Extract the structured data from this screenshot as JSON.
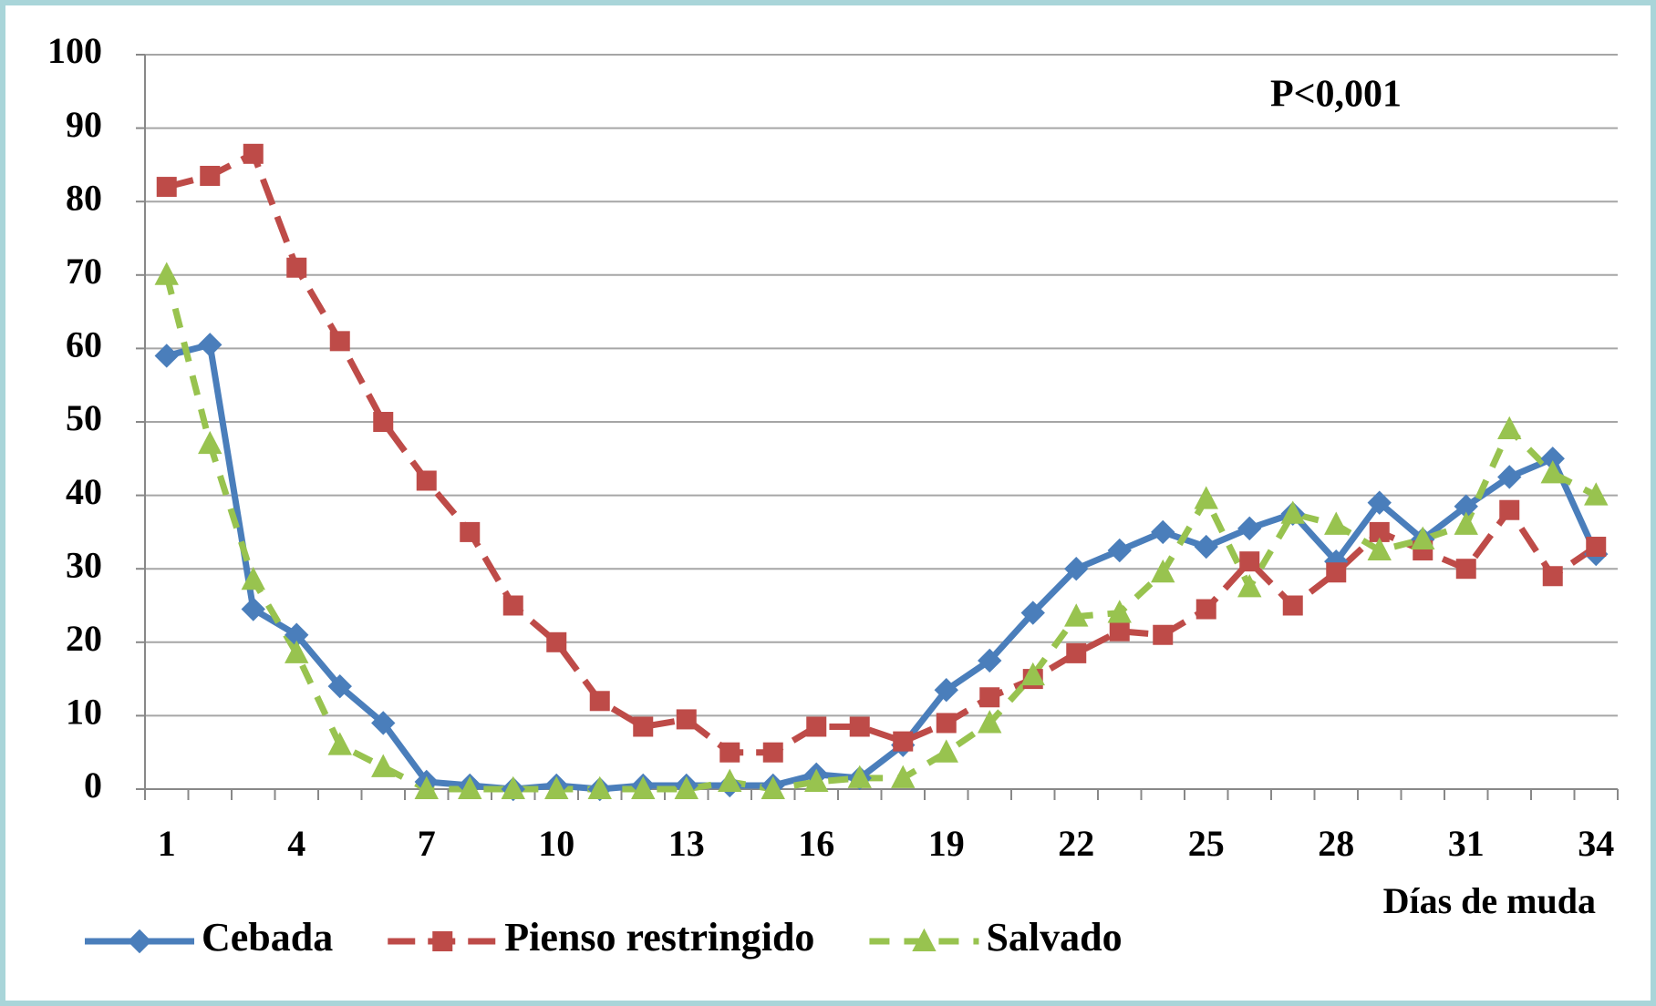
{
  "chart_data": {
    "type": "line",
    "annotation": "P<0,001",
    "x_label": "Días de muda",
    "x": [
      1,
      2,
      3,
      4,
      5,
      6,
      7,
      8,
      9,
      10,
      11,
      12,
      13,
      14,
      15,
      16,
      17,
      18,
      19,
      20,
      21,
      22,
      23,
      24,
      25,
      26,
      27,
      28,
      29,
      30,
      31,
      32,
      33,
      34
    ],
    "xlim": [
      0.5,
      34.5
    ],
    "xticks": [
      1,
      4,
      7,
      10,
      13,
      16,
      19,
      22,
      25,
      28,
      31,
      34
    ],
    "ylim": [
      0,
      100
    ],
    "yticks": [
      0,
      10,
      20,
      30,
      40,
      50,
      60,
      70,
      80,
      90,
      100
    ],
    "grid": true,
    "legend": "bottom",
    "series": [
      {
        "name": "Cebada",
        "color": "#4a7ebb",
        "marker": "diamond",
        "dash": "solid",
        "values": [
          59,
          60.5,
          24.5,
          21,
          14,
          9,
          1,
          0.5,
          0,
          0.5,
          0,
          0.5,
          0.5,
          0.5,
          0.5,
          2,
          1.5,
          6,
          13.5,
          17.5,
          24,
          30,
          32.5,
          35,
          33,
          35.5,
          37.5,
          31,
          39,
          34,
          38.5,
          42.5,
          45,
          32
        ]
      },
      {
        "name": "Pienso restringido",
        "color": "#be4b48",
        "marker": "square",
        "dash": "long",
        "values": [
          82,
          83.5,
          86.5,
          71,
          61,
          50,
          42,
          35,
          25,
          20,
          12,
          8.5,
          9.5,
          5,
          5,
          8.5,
          8.5,
          6.5,
          9,
          12.5,
          15,
          18.5,
          21.5,
          21,
          24.5,
          31,
          25,
          29.5,
          35,
          32.5,
          30,
          38,
          29,
          33
        ]
      },
      {
        "name": "Salvado",
        "color": "#98c34f",
        "marker": "triangle",
        "dash": "short",
        "values": [
          70,
          47,
          28.5,
          18.5,
          6,
          3,
          0,
          0,
          0,
          0,
          0,
          0,
          0,
          1,
          0,
          1,
          1.5,
          1.5,
          5,
          9,
          15.5,
          23.5,
          24,
          29.5,
          39.5,
          27.5,
          37.5,
          36,
          32.5,
          34,
          36,
          49,
          43,
          40
        ]
      }
    ]
  }
}
